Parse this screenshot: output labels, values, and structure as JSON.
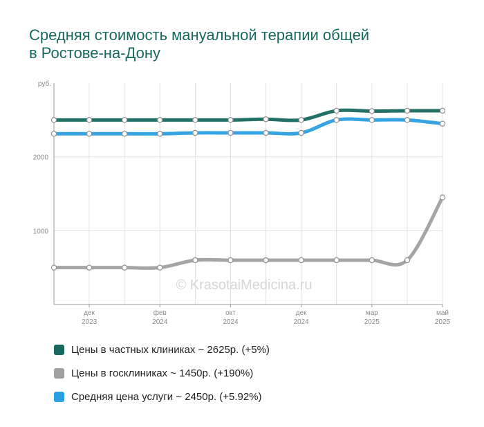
{
  "title_lines": [
    "Средняя стоимость мануальной терапии общей",
    "в Ростове-на-Дону"
  ],
  "watermark": "© KrasotaiMedicina.ru",
  "chart_data": {
    "type": "line",
    "y_unit": "руб.",
    "ylim": [
      0,
      3000
    ],
    "yticks": [
      1000,
      2000
    ],
    "x_tick_labels": [
      {
        "month": "дек",
        "year": "2023",
        "index": 1
      },
      {
        "month": "фев",
        "year": "2024",
        "index": 3
      },
      {
        "month": "окт",
        "year": "2024",
        "index": 5
      },
      {
        "month": "дек",
        "year": "2024",
        "index": 7
      },
      {
        "month": "мар",
        "year": "2025",
        "index": 9
      },
      {
        "month": "май",
        "year": "2025",
        "index": 11
      }
    ],
    "point_count": 12,
    "grid": true,
    "legend_position": "bottom",
    "series": [
      {
        "name": "Цены в частных клиниках ~ 2625р. (+5%)",
        "color": "#17695f",
        "values": [
          2500,
          2500,
          2500,
          2500,
          2500,
          2500,
          2510,
          2500,
          2625,
          2620,
          2625,
          2625
        ]
      },
      {
        "name": "Цены в госклиниках ~ 1450р. (+190%)",
        "color": "#a0a0a0",
        "values": [
          500,
          500,
          500,
          500,
          600,
          600,
          600,
          600,
          600,
          600,
          600,
          1450
        ]
      },
      {
        "name": "Средняя цена услуги ~ 2450р. (+5.92%)",
        "color": "#2b9fe0",
        "values": [
          2313,
          2313,
          2313,
          2313,
          2325,
          2325,
          2325,
          2325,
          2500,
          2500,
          2500,
          2450
        ]
      }
    ]
  }
}
